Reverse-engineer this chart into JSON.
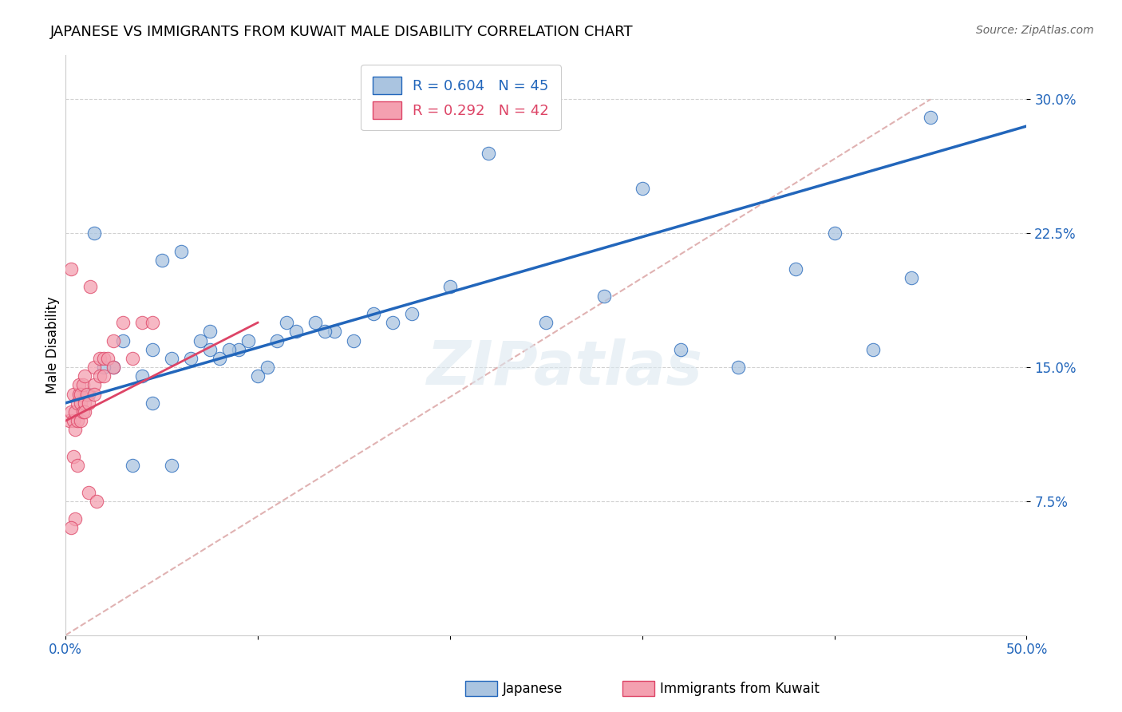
{
  "title": "JAPANESE VS IMMIGRANTS FROM KUWAIT MALE DISABILITY CORRELATION CHART",
  "source": "Source: ZipAtlas.com",
  "ylabel": "Male Disability",
  "xlim": [
    0.0,
    50.0
  ],
  "ylim": [
    0.0,
    32.5
  ],
  "yticks": [
    7.5,
    15.0,
    22.5,
    30.0
  ],
  "xticks": [
    0.0,
    10.0,
    20.0,
    30.0,
    40.0,
    50.0
  ],
  "blue_R": "0.604",
  "blue_N": "45",
  "pink_R": "0.292",
  "pink_N": "42",
  "blue_color": "#aac4e0",
  "pink_color": "#f4a0b0",
  "blue_line_color": "#2266bb",
  "pink_line_color": "#dd4466",
  "ref_line_color": "#ddaaaa",
  "legend_label_blue": "Japanese",
  "legend_label_pink": "Immigrants from Kuwait",
  "blue_scatter_x": [
    1.2,
    2.5,
    4.0,
    4.5,
    5.5,
    7.0,
    7.5,
    8.0,
    9.0,
    10.0,
    11.0,
    12.0,
    13.0,
    14.0,
    15.0,
    16.0,
    17.0,
    18.0,
    20.0,
    22.0,
    25.0,
    28.0,
    30.0,
    32.0,
    35.0,
    38.0,
    40.0,
    42.0,
    44.0,
    45.0,
    3.0,
    5.0,
    6.0,
    7.5,
    9.5,
    11.5,
    13.5,
    4.5,
    6.5,
    8.5,
    10.5,
    3.5,
    5.5,
    2.0,
    1.5
  ],
  "blue_scatter_y": [
    13.5,
    15.0,
    14.5,
    16.0,
    15.5,
    16.5,
    17.0,
    15.5,
    16.0,
    14.5,
    16.5,
    17.0,
    17.5,
    17.0,
    16.5,
    18.0,
    17.5,
    18.0,
    19.5,
    27.0,
    17.5,
    19.0,
    25.0,
    16.0,
    15.0,
    20.5,
    22.5,
    16.0,
    20.0,
    29.0,
    16.5,
    21.0,
    21.5,
    16.0,
    16.5,
    17.5,
    17.0,
    13.0,
    15.5,
    16.0,
    15.0,
    9.5,
    9.5,
    15.0,
    22.5
  ],
  "pink_scatter_x": [
    0.2,
    0.3,
    0.3,
    0.4,
    0.4,
    0.5,
    0.5,
    0.6,
    0.6,
    0.7,
    0.7,
    0.8,
    0.8,
    0.8,
    0.9,
    0.9,
    1.0,
    1.0,
    1.0,
    1.1,
    1.2,
    1.3,
    1.5,
    1.5,
    1.5,
    1.8,
    1.8,
    2.0,
    2.0,
    2.2,
    2.5,
    2.5,
    3.0,
    3.5,
    4.0,
    4.5,
    0.4,
    0.6,
    1.2,
    1.6,
    0.5,
    0.3
  ],
  "pink_scatter_y": [
    12.0,
    12.5,
    20.5,
    12.0,
    13.5,
    12.5,
    11.5,
    12.0,
    13.0,
    13.5,
    14.0,
    12.0,
    13.0,
    13.5,
    12.5,
    14.0,
    13.0,
    14.5,
    12.5,
    13.5,
    13.0,
    19.5,
    14.0,
    13.5,
    15.0,
    14.5,
    15.5,
    14.5,
    15.5,
    15.5,
    15.0,
    16.5,
    17.5,
    15.5,
    17.5,
    17.5,
    10.0,
    9.5,
    8.0,
    7.5,
    6.5,
    6.0
  ],
  "blue_line_x": [
    0.0,
    50.0
  ],
  "blue_line_y": [
    13.0,
    28.5
  ],
  "pink_line_x": [
    0.0,
    10.0
  ],
  "pink_line_y": [
    12.0,
    17.5
  ],
  "ref_line_x": [
    0.0,
    45.0
  ],
  "ref_line_y": [
    0.0,
    30.0
  ],
  "watermark": "ZIPatlas",
  "background_color": "#ffffff",
  "grid_color": "#cccccc"
}
